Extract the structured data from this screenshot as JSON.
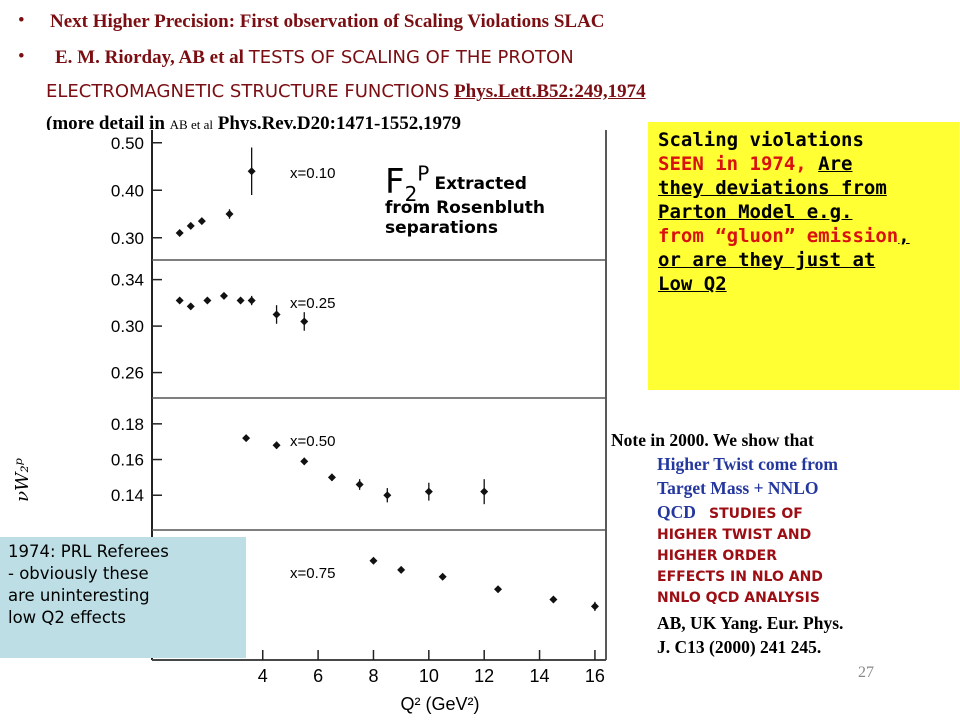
{
  "bullets": [
    {
      "dot": "•",
      "text": "Next Higher Precision: First observation of Scaling Violations SLAC"
    },
    {
      "dot": "•",
      "authors": "E. M. Riorday, AB et al",
      "title_line1": "TESTS OF SCALING OF THE PROTON",
      "title_line2": "ELECTROMAGNETIC STRUCTURE FUNCTIONS",
      "citation": "Phys.Lett.B52:249,1974",
      "more_prefix": "(more detail in",
      "more_authors": "AB et al",
      "more_citation": "Phys.Rev.D20:1471-1552,1979"
    }
  ],
  "f2_label": {
    "base": "F",
    "sub": "2",
    "sup": "P",
    "line1": "Extracted",
    "line2": "from Rosenbluth",
    "line3": "separations"
  },
  "yellow_box": {
    "l1": "Scaling violations",
    "l2a": "SEEN in 1974,",
    "l2b": "Are",
    "l3": "they deviations from",
    "l4": "Parton Model  e.g.",
    "l5a": "from “gluon” emission",
    "l5b": ",",
    "l6": "or  are they just at",
    "l7": "Low Q2"
  },
  "note": {
    "l1": "Note in 2000. We show that",
    "l2": "Higher Twist come from",
    "l3": "Target Mass + NNLO",
    "l4a": "QCD",
    "l4b": "STUDIES OF",
    "l5": "HIGHER TWIST AND",
    "l6": "HIGHER ORDER",
    "l7": "EFFECTS IN NLO AND",
    "l8": "NNLO QCD ANALYSIS",
    "l9": "AB, UK Yang. Eur. Phys.",
    "l10": "J. C13 (2000) 241 245."
  },
  "referee_box": {
    "l1": "1974: PRL Referees",
    "l2": "- obviously these",
    "l3": "are uninteresting",
    "l4": "low Q2 effects"
  },
  "page_number": "27",
  "chart_data": {
    "type": "scatter",
    "title": "",
    "xlabel": "Q² (GeV²)",
    "ylabel": "νW₂ᵖ",
    "x_ticks": [
      "4",
      "6",
      "8",
      "10",
      "12",
      "14",
      "16"
    ],
    "panels": [
      {
        "label": "x=0.10",
        "y_ticks": [
          "0.50",
          "0.40",
          "0.30"
        ],
        "ylim": [
          0.27,
          0.51
        ],
        "points": [
          [
            1.0,
            0.31
          ],
          [
            1.4,
            0.325
          ],
          [
            1.8,
            0.335
          ],
          [
            2.8,
            0.35
          ],
          [
            3.6,
            0.44
          ]
        ],
        "errors": [
          0.004,
          0.004,
          0.005,
          0.01,
          0.05
        ]
      },
      {
        "label": "x=0.25",
        "y_ticks": [
          "0.34",
          "0.30",
          "0.26"
        ],
        "ylim": [
          0.245,
          0.35
        ],
        "points": [
          [
            1.0,
            0.322
          ],
          [
            1.4,
            0.317
          ],
          [
            2.0,
            0.322
          ],
          [
            2.6,
            0.326
          ],
          [
            3.2,
            0.322
          ],
          [
            3.6,
            0.322
          ],
          [
            4.5,
            0.31
          ],
          [
            5.5,
            0.304
          ]
        ],
        "errors": [
          0.002,
          0.002,
          0.002,
          0.002,
          0.003,
          0.004,
          0.008,
          0.008
        ]
      },
      {
        "label": "x=0.50",
        "y_ticks": [
          "0.18",
          "0.16",
          "0.14"
        ],
        "ylim": [
          0.125,
          0.19
        ],
        "points": [
          [
            3.4,
            0.172
          ],
          [
            4.5,
            0.168
          ],
          [
            5.5,
            0.159
          ],
          [
            6.5,
            0.15
          ],
          [
            7.5,
            0.146
          ],
          [
            8.5,
            0.14
          ],
          [
            10.0,
            0.142
          ],
          [
            12.0,
            0.142
          ]
        ],
        "errors": [
          0.001,
          0.002,
          0.002,
          0.002,
          0.003,
          0.004,
          0.005,
          0.007
        ]
      },
      {
        "label": "x=0.75",
        "y_ticks": [],
        "ylim": [
          0.0,
          1.0
        ],
        "points": [
          [
            8.0,
            0.8
          ],
          [
            9.0,
            0.72
          ],
          [
            10.5,
            0.66
          ],
          [
            12.5,
            0.55
          ],
          [
            14.5,
            0.46
          ],
          [
            16.0,
            0.4
          ]
        ],
        "errors": [
          0.01,
          0.01,
          0.01,
          0.02,
          0.02,
          0.04
        ]
      }
    ]
  }
}
